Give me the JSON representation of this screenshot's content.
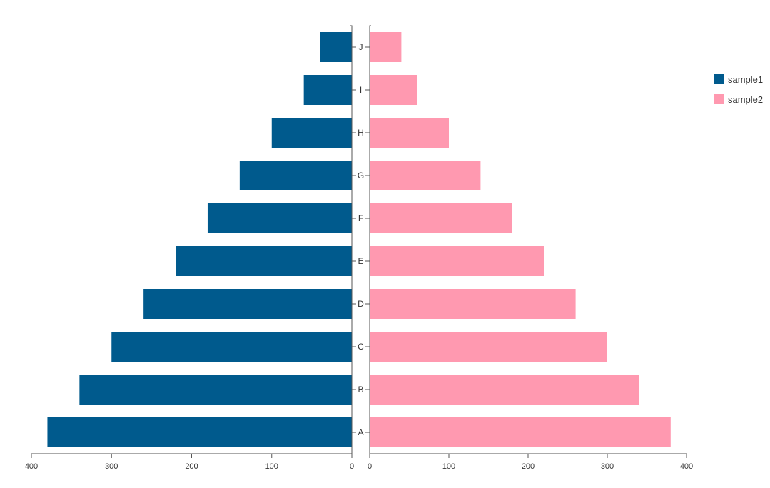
{
  "chart_data": {
    "type": "bar",
    "orientation": "horizontal-butterfly",
    "categories": [
      "A",
      "B",
      "C",
      "D",
      "E",
      "F",
      "G",
      "H",
      "I",
      "J"
    ],
    "series": [
      {
        "name": "sample1",
        "values": [
          380,
          340,
          300,
          260,
          220,
          180,
          140,
          100,
          60,
          40
        ],
        "color": "#005a8d",
        "side": "left"
      },
      {
        "name": "sample2",
        "values": [
          380,
          340,
          300,
          260,
          220,
          180,
          140,
          100,
          60,
          40
        ],
        "color": "#ff99b0",
        "side": "right"
      }
    ],
    "xlim": [
      0,
      400
    ],
    "x_ticks": [
      "0",
      "100",
      "200",
      "300",
      "400"
    ],
    "grid": false,
    "legend_position": "top-right"
  }
}
